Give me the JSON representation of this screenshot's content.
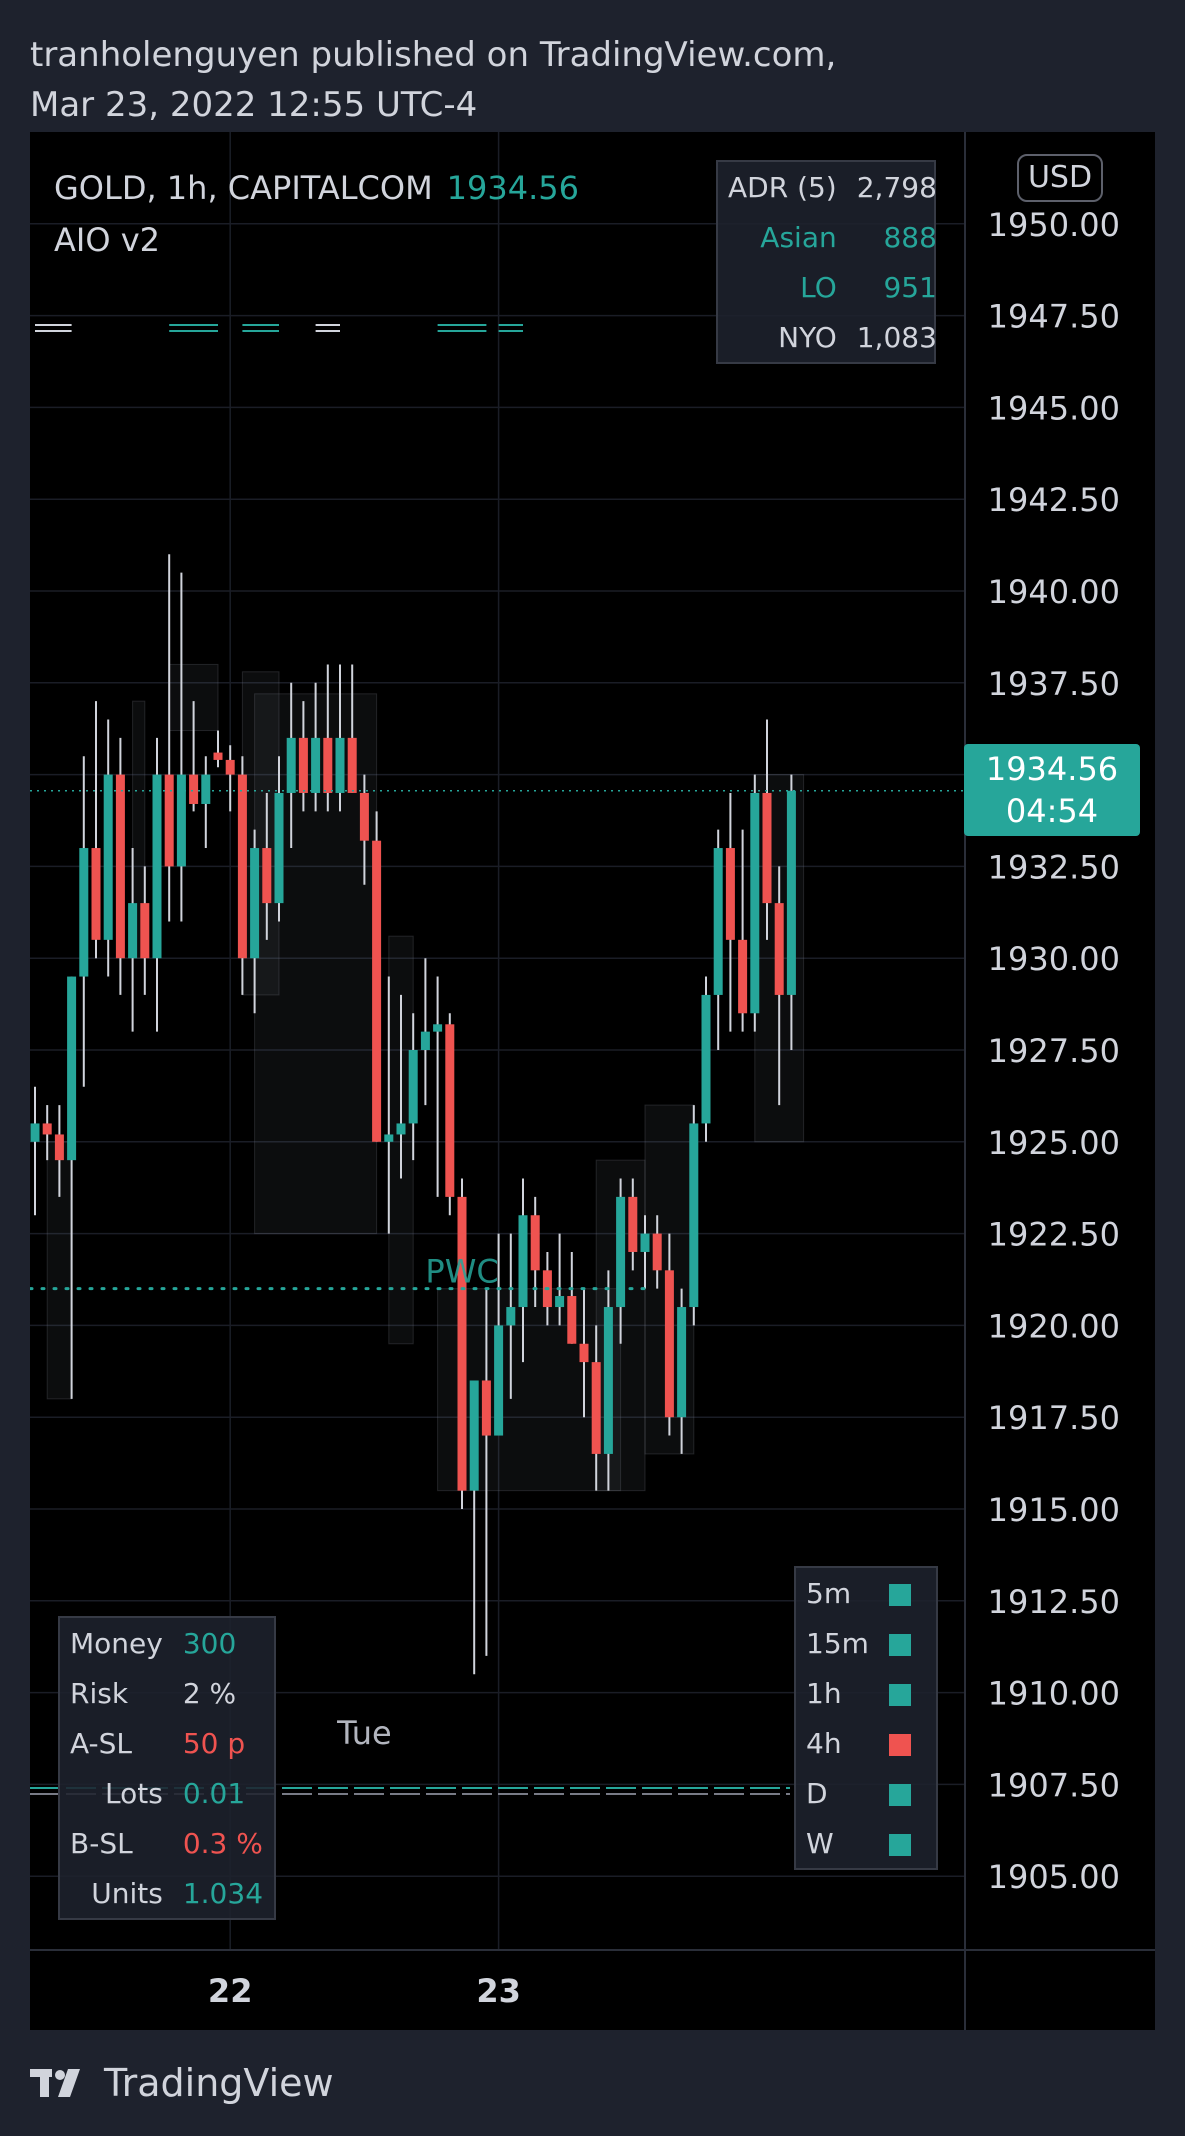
{
  "header": {
    "publisher_line": "tranholenguyen published on TradingView.com,",
    "date_line": "Mar 23, 2022 12:55 UTC-4"
  },
  "legend": {
    "symbol_line": "GOLD, 1h, CAPITALCOM",
    "last_price": "1934.56",
    "indicator": "AIO v2"
  },
  "currency_badge": "USD",
  "price_tag": {
    "price": "1934.56",
    "countdown": "04:54"
  },
  "adr_table": {
    "rows": [
      {
        "name": "ADR (5)",
        "value": "2,798",
        "color": "#d1d4dc"
      },
      {
        "name": "Asian",
        "value": "888",
        "color": "#26a69a"
      },
      {
        "name": "LO",
        "value": "951",
        "color": "#26a69a"
      },
      {
        "name": "NYO",
        "value": "1,083",
        "color": "#d1d4dc"
      }
    ]
  },
  "risk_table": {
    "rows": [
      {
        "name": "Money",
        "value": "300",
        "color": "#26a69a"
      },
      {
        "name": "Risk",
        "value": "2 %",
        "color": "#d1d4dc"
      },
      {
        "name": "A-SL",
        "value": "50 p",
        "color": "#ef5350"
      },
      {
        "name": "Lots",
        "value": "0.01",
        "color": "#26a69a"
      },
      {
        "name": "B-SL",
        "value": "0.3 %",
        "color": "#ef5350"
      },
      {
        "name": "Units",
        "value": "1.034",
        "color": "#26a69a"
      }
    ]
  },
  "timeframe_table": {
    "rows": [
      {
        "tf": "5m",
        "color": "#26a69a"
      },
      {
        "tf": "15m",
        "color": "#26a69a"
      },
      {
        "tf": "1h",
        "color": "#26a69a"
      },
      {
        "tf": "4h",
        "color": "#ef5350"
      },
      {
        "tf": "D",
        "color": "#26a69a"
      },
      {
        "tf": "W",
        "color": "#26a69a"
      }
    ]
  },
  "brand": "TradingView",
  "chart_data": {
    "type": "candlestick",
    "symbol": "GOLD",
    "timeframe": "1h",
    "y_ticks": [
      "1950.00",
      "1947.50",
      "1945.00",
      "1942.50",
      "1940.00",
      "1937.50",
      "1935.00",
      "1932.50",
      "1930.00",
      "1927.50",
      "1925.00",
      "1922.50",
      "1920.00",
      "1917.50",
      "1915.00",
      "1912.50",
      "1910.00",
      "1907.50",
      "1905.00"
    ],
    "ylim": [
      1902.5,
      1952.5
    ],
    "x_labels": [
      {
        "index": 16,
        "label": "22"
      },
      {
        "index": 38,
        "label": "23"
      }
    ],
    "annotation_session_label": {
      "index": 27,
      "text": "Tue"
    },
    "annotation_pwc": {
      "index": 32,
      "price": 1921.0,
      "text": "PWC"
    },
    "current_price_line": 1934.56,
    "pwc_line": 1921.0,
    "colors": {
      "up": "#26a69a",
      "down": "#ef5350"
    },
    "candles": [
      {
        "o": 1925.0,
        "h": 1926.5,
        "l": 1923.0,
        "c": 1925.5
      },
      {
        "o": 1925.5,
        "h": 1926.0,
        "l": 1924.5,
        "c": 1925.2
      },
      {
        "o": 1925.2,
        "h": 1926.0,
        "l": 1923.5,
        "c": 1924.5
      },
      {
        "o": 1924.5,
        "h": 1929.5,
        "l": 1918.0,
        "c": 1929.5
      },
      {
        "o": 1929.5,
        "h": 1935.5,
        "l": 1926.5,
        "c": 1933.0
      },
      {
        "o": 1933.0,
        "h": 1937.0,
        "l": 1930.0,
        "c": 1930.5
      },
      {
        "o": 1930.5,
        "h": 1936.5,
        "l": 1929.5,
        "c": 1935.0
      },
      {
        "o": 1935.0,
        "h": 1936.0,
        "l": 1929.0,
        "c": 1930.0
      },
      {
        "o": 1930.0,
        "h": 1933.0,
        "l": 1928.0,
        "c": 1931.5
      },
      {
        "o": 1931.5,
        "h": 1932.5,
        "l": 1929.0,
        "c": 1930.0
      },
      {
        "o": 1930.0,
        "h": 1936.0,
        "l": 1928.0,
        "c": 1935.0
      },
      {
        "o": 1935.0,
        "h": 1941.0,
        "l": 1931.0,
        "c": 1932.5
      },
      {
        "o": 1932.5,
        "h": 1940.5,
        "l": 1931.0,
        "c": 1935.0
      },
      {
        "o": 1935.0,
        "h": 1937.0,
        "l": 1934.0,
        "c": 1934.2
      },
      {
        "o": 1934.2,
        "h": 1935.5,
        "l": 1933.0,
        "c": 1935.0
      },
      {
        "o": 1935.6,
        "h": 1936.2,
        "l": 1935.2,
        "c": 1935.4
      },
      {
        "o": 1935.4,
        "h": 1935.8,
        "l": 1934.0,
        "c": 1935.0
      },
      {
        "o": 1935.0,
        "h": 1935.5,
        "l": 1929.0,
        "c": 1930.0
      },
      {
        "o": 1930.0,
        "h": 1933.5,
        "l": 1928.5,
        "c": 1933.0
      },
      {
        "o": 1933.0,
        "h": 1934.5,
        "l": 1930.5,
        "c": 1931.5
      },
      {
        "o": 1931.5,
        "h": 1935.5,
        "l": 1931.0,
        "c": 1934.5
      },
      {
        "o": 1934.5,
        "h": 1937.5,
        "l": 1933.0,
        "c": 1936.0
      },
      {
        "o": 1936.0,
        "h": 1937.0,
        "l": 1934.0,
        "c": 1934.5
      },
      {
        "o": 1934.5,
        "h": 1937.5,
        "l": 1934.0,
        "c": 1936.0
      },
      {
        "o": 1936.0,
        "h": 1938.0,
        "l": 1934.0,
        "c": 1934.5
      },
      {
        "o": 1934.5,
        "h": 1938.0,
        "l": 1934.0,
        "c": 1936.0
      },
      {
        "o": 1936.0,
        "h": 1938.0,
        "l": 1934.5,
        "c": 1934.5
      },
      {
        "o": 1934.5,
        "h": 1935.0,
        "l": 1932.0,
        "c": 1933.2
      },
      {
        "o": 1933.2,
        "h": 1934.0,
        "l": 1925.0,
        "c": 1925.0
      },
      {
        "o": 1925.0,
        "h": 1929.5,
        "l": 1922.5,
        "c": 1925.2
      },
      {
        "o": 1925.2,
        "h": 1929.0,
        "l": 1924.0,
        "c": 1925.5
      },
      {
        "o": 1925.5,
        "h": 1928.5,
        "l": 1924.5,
        "c": 1927.5
      },
      {
        "o": 1927.5,
        "h": 1930.0,
        "l": 1926.0,
        "c": 1928.0
      },
      {
        "o": 1928.0,
        "h": 1929.5,
        "l": 1923.5,
        "c": 1928.2
      },
      {
        "o": 1928.2,
        "h": 1928.5,
        "l": 1923.0,
        "c": 1923.5
      },
      {
        "o": 1923.5,
        "h": 1924.0,
        "l": 1915.0,
        "c": 1915.5
      },
      {
        "o": 1915.5,
        "h": 1918.5,
        "l": 1910.5,
        "c": 1918.5
      },
      {
        "o": 1918.5,
        "h": 1921.0,
        "l": 1911.0,
        "c": 1917.0
      },
      {
        "o": 1917.0,
        "h": 1922.5,
        "l": 1917.5,
        "c": 1920.0
      },
      {
        "o": 1920.0,
        "h": 1922.5,
        "l": 1918.0,
        "c": 1920.5
      },
      {
        "o": 1920.5,
        "h": 1924.0,
        "l": 1919.0,
        "c": 1923.0
      },
      {
        "o": 1923.0,
        "h": 1923.5,
        "l": 1920.5,
        "c": 1921.5
      },
      {
        "o": 1921.5,
        "h": 1922.0,
        "l": 1920.0,
        "c": 1920.5
      },
      {
        "o": 1920.5,
        "h": 1922.5,
        "l": 1920.0,
        "c": 1920.8
      },
      {
        "o": 1920.8,
        "h": 1922.0,
        "l": 1919.5,
        "c": 1919.5
      },
      {
        "o": 1919.5,
        "h": 1921.0,
        "l": 1917.5,
        "c": 1919.0
      },
      {
        "o": 1919.0,
        "h": 1920.0,
        "l": 1915.5,
        "c": 1916.5
      },
      {
        "o": 1916.5,
        "h": 1921.5,
        "l": 1915.5,
        "c": 1920.5
      },
      {
        "o": 1920.5,
        "h": 1924.0,
        "l": 1919.5,
        "c": 1923.5
      },
      {
        "o": 1923.5,
        "h": 1924.0,
        "l": 1921.5,
        "c": 1922.0
      },
      {
        "o": 1922.0,
        "h": 1923.0,
        "l": 1921.0,
        "c": 1922.5
      },
      {
        "o": 1922.5,
        "h": 1923.0,
        "l": 1921.0,
        "c": 1921.5
      },
      {
        "o": 1921.5,
        "h": 1922.5,
        "l": 1917.0,
        "c": 1917.5
      },
      {
        "o": 1917.5,
        "h": 1921.0,
        "l": 1916.5,
        "c": 1920.5
      },
      {
        "o": 1920.5,
        "h": 1926.0,
        "l": 1920.0,
        "c": 1925.5
      },
      {
        "o": 1925.5,
        "h": 1929.5,
        "l": 1925.0,
        "c": 1929.0
      },
      {
        "o": 1929.0,
        "h": 1933.5,
        "l": 1927.5,
        "c": 1933.0
      },
      {
        "o": 1933.0,
        "h": 1934.5,
        "l": 1928.0,
        "c": 1930.5
      },
      {
        "o": 1930.5,
        "h": 1933.5,
        "l": 1928.0,
        "c": 1928.5
      },
      {
        "o": 1928.5,
        "h": 1935.0,
        "l": 1928.0,
        "c": 1934.5
      },
      {
        "o": 1934.5,
        "h": 1936.5,
        "l": 1930.5,
        "c": 1931.5
      },
      {
        "o": 1931.5,
        "h": 1932.5,
        "l": 1926.0,
        "c": 1929.0
      },
      {
        "o": 1929.0,
        "h": 1935.0,
        "l": 1927.5,
        "c": 1934.56
      }
    ]
  }
}
